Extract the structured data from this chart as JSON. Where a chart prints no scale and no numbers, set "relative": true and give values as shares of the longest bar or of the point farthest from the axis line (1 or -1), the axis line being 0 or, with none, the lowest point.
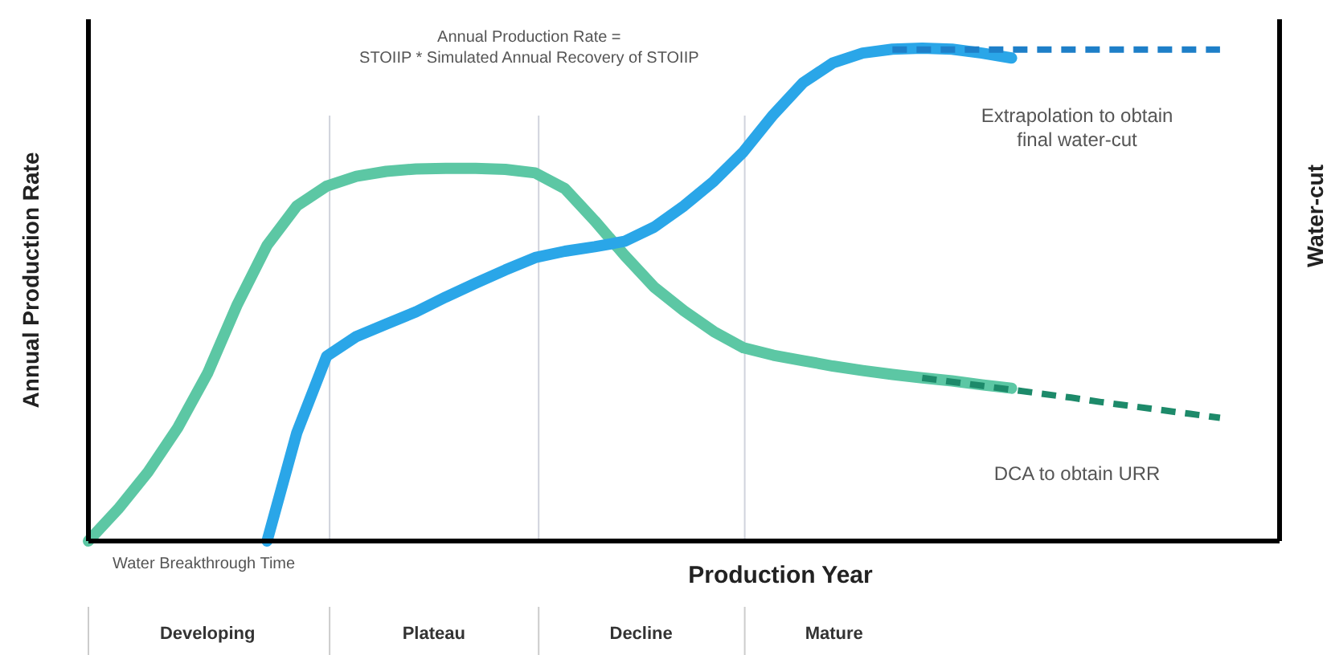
{
  "chart_data": {
    "type": "line",
    "relative": true,
    "xlabel": "Production Year",
    "ylabel": "Annual Production Rate",
    "y2label": "Water-cut",
    "grid": "x",
    "categories": [
      null,
      null,
      null,
      null,
      null,
      null,
      null,
      null,
      null,
      null,
      null,
      null,
      null,
      null,
      null,
      null,
      null,
      null,
      null,
      null,
      null,
      null,
      null,
      null,
      null,
      null,
      null,
      null,
      null,
      null,
      null,
      null,
      null,
      null,
      null,
      null,
      null,
      null,
      null,
      null,
      null
    ],
    "series": [
      {
        "color": "#5cc7a4",
        "values": [
          0,
          0.065,
          0.14,
          0.23,
          0.34,
          0.48,
          0.6,
          0.68,
          0.72,
          0.74,
          0.75,
          0.755,
          0.756,
          0.756,
          0.754,
          0.747,
          0.715,
          0.65,
          0.58,
          0.515,
          0.467,
          0.425,
          0.392,
          0.377,
          0.366,
          0.355,
          0.346,
          0.338,
          0.331,
          0.325,
          0.317,
          0.31,
          null,
          null,
          null,
          null,
          null,
          null,
          null,
          null,
          null
        ]
      },
      {
        "color": "#2aa6e8",
        "values": [
          null,
          null,
          null,
          null,
          null,
          null,
          0,
          0.22,
          0.375,
          0.415,
          0.44,
          0.465,
          0.495,
          0.523,
          0.55,
          0.575,
          0.588,
          0.597,
          0.608,
          0.637,
          0.68,
          0.73,
          0.79,
          0.865,
          0.93,
          0.97,
          0.99,
          0.998,
          1,
          0.998,
          0.99,
          0.98,
          null,
          null,
          null,
          null,
          null,
          null,
          null,
          null,
          null
        ]
      },
      {
        "color": "#1e7fc8",
        "line_style": "dashed",
        "values": [
          null,
          null,
          null,
          null,
          null,
          null,
          null,
          null,
          null,
          null,
          null,
          null,
          null,
          null,
          null,
          null,
          null,
          null,
          null,
          null,
          null,
          null,
          null,
          null,
          null,
          null,
          null,
          0.997,
          0.997,
          0.997,
          0.997,
          0.997,
          0.997,
          0.997,
          0.997,
          0.997,
          0.997,
          0.997,
          0.997,
          null,
          null
        ]
      },
      {
        "color": "#1d8a6a",
        "line_style": "dashed",
        "values": [
          null,
          null,
          null,
          null,
          null,
          null,
          null,
          null,
          null,
          null,
          null,
          null,
          null,
          null,
          null,
          null,
          null,
          null,
          null,
          null,
          null,
          null,
          null,
          null,
          null,
          null,
          null,
          null,
          0.331,
          0.323,
          0.315,
          0.307,
          0.299,
          0.291,
          0.282,
          0.274,
          0.266,
          0.258,
          0.25,
          null,
          null
        ]
      }
    ],
    "annotations": [
      "Annual Production Rate =\nSTOIIP * Simulated Annual Recovery of STOIIP",
      "Water Breakthrough Time",
      "Extrapolation to obtain\nfinal water-cut",
      "DCA to obtain URR",
      "Developing",
      "Plateau",
      "Decline",
      "Mature"
    ]
  }
}
